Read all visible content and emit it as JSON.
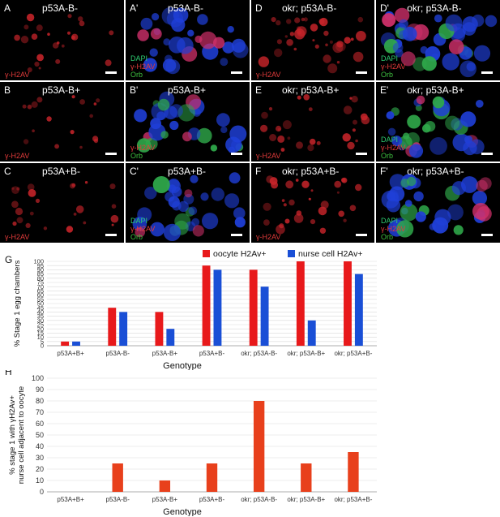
{
  "panels": [
    {
      "id": "A",
      "label": "A",
      "title": "p53A-B-",
      "channels": [
        "γ-H2AV"
      ],
      "tone": "red",
      "density": 0.35
    },
    {
      "id": "A2",
      "label": "A'",
      "title": "p53A-B-",
      "channels": [
        "DAPI",
        "γ-H2AV",
        "Orb"
      ],
      "tone": "merge",
      "density": 0.55
    },
    {
      "id": "D",
      "label": "D",
      "title": "okr; p53A-B-",
      "channels": [
        "γ-H2AV"
      ],
      "tone": "red",
      "density": 0.8
    },
    {
      "id": "D2",
      "label": "D'",
      "title": "okr; p53A-B-",
      "channels": [
        "DAPI",
        "γ-H2AV",
        "Orb"
      ],
      "tone": "merge",
      "density": 0.95
    },
    {
      "id": "B",
      "label": "B",
      "title": "p53A-B+",
      "channels": [
        "γ-H2AV"
      ],
      "tone": "red",
      "density": 0.15
    },
    {
      "id": "B2",
      "label": "B'",
      "title": "p53A-B+",
      "channels": [
        "γ-H2AV",
        "Orb"
      ],
      "tone": "merge",
      "density": 0.6
    },
    {
      "id": "E",
      "label": "E",
      "title": "okr; p53A-B+",
      "channels": [
        "γ-H2AV"
      ],
      "tone": "red",
      "density": 0.5
    },
    {
      "id": "E2",
      "label": "E'",
      "title": "okr; p53A-B+",
      "channels": [
        "DAPI",
        "γ-H2AV",
        "Orb"
      ],
      "tone": "merge",
      "density": 0.65
    },
    {
      "id": "C",
      "label": "C",
      "title": "p53A+B-",
      "channels": [
        "γ-H2AV"
      ],
      "tone": "red",
      "density": 0.4
    },
    {
      "id": "C2",
      "label": "C'",
      "title": "p53A+B-",
      "channels": [
        "DAPI",
        "γ-H2AV",
        "Orb"
      ],
      "tone": "merge",
      "density": 0.7
    },
    {
      "id": "F",
      "label": "F",
      "title": "okr; p53A+B-",
      "channels": [
        "γ-H2AV"
      ],
      "tone": "red",
      "density": 0.6
    },
    {
      "id": "F2",
      "label": "F'",
      "title": "okr; p53A+B-",
      "channels": [
        "DAPI",
        "γ-H2AV",
        "Orb"
      ],
      "tone": "merge",
      "density": 0.75
    }
  ],
  "channel_colors": {
    "DAPI": "#2ecc71",
    "γ-H2AV": "#e23b3b",
    "Orb": "#3fbf3f"
  },
  "chart_data": [
    {
      "panel_label": "G",
      "type": "bar",
      "categories": [
        "p53A+B+",
        "p53A-B-",
        "p53A-B+",
        "p53A+B-",
        "okr; p53A-B-",
        "okr; p53A-B+",
        "okr; p53A+B-"
      ],
      "series": [
        {
          "name": "oocyte H2Av+",
          "color": "#e8191b",
          "values": [
            5,
            45,
            40,
            95,
            90,
            100,
            100
          ]
        },
        {
          "name": "nurse cell H2Av+",
          "color": "#1a4fd6",
          "values": [
            5,
            40,
            20,
            90,
            70,
            30,
            85
          ]
        }
      ],
      "xlabel": "Genotype",
      "ylabel": "% Stage 1 egg chambers",
      "ylim": [
        0,
        100
      ],
      "yticks": [
        0,
        5,
        10,
        15,
        20,
        25,
        30,
        35,
        40,
        45,
        50,
        55,
        60,
        65,
        70,
        75,
        80,
        85,
        90,
        95,
        100
      ],
      "legend": "top"
    },
    {
      "panel_label": "H",
      "type": "bar",
      "categories": [
        "p53A+B+",
        "p53A-B-",
        "p53A-B+",
        "p53A+B-",
        "okr; p53A-B-",
        "okr; p53A-B+",
        "okr; p53A+B-"
      ],
      "series": [
        {
          "color": "#e8401c",
          "values": [
            0,
            25,
            10,
            25,
            80,
            25,
            35
          ]
        }
      ],
      "xlabel": "Genotype",
      "ylabel": "% stage 1 with γH2Av+ nurse cell adjacent to oocyte",
      "ylabel_lines": [
        "% stage 1 with γH2Av+",
        "nurse cell adjacent to oocyte"
      ],
      "ylim": [
        0,
        100
      ],
      "yticks": [
        0,
        10,
        20,
        30,
        40,
        50,
        60,
        70,
        80,
        90,
        100
      ]
    }
  ]
}
